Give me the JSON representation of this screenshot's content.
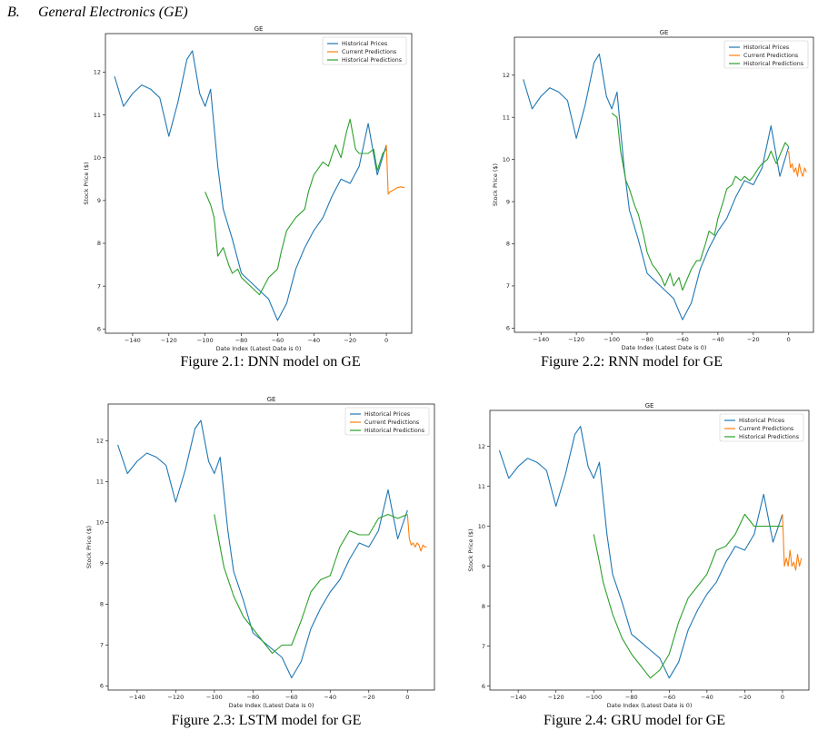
{
  "section": {
    "number": "B.",
    "title": "General Electronics (GE)"
  },
  "colors": {
    "historical_prices": "#1f77b4",
    "current_predictions": "#ff7f0e",
    "historical_predictions": "#2ca02c"
  },
  "captions": [
    "Figure 2.1: DNN model on GE",
    "Figure 2.2: RNN model for GE",
    "Figure 2.3: LSTM model for GE",
    "Figure 2.4: GRU model for GE"
  ],
  "chart_data": [
    {
      "type": "line",
      "title": "GE",
      "xlabel": "Date Index (Latest Date is 0)",
      "ylabel": "Stock Price ($)",
      "xlim": [
        -155,
        14
      ],
      "ylim": [
        5.9,
        12.9
      ],
      "xticks": [
        -140,
        -120,
        -100,
        -80,
        -60,
        -40,
        -20,
        0
      ],
      "yticks": [
        6,
        7,
        8,
        9,
        10,
        11,
        12
      ],
      "legend_position": "top-right",
      "series": [
        {
          "name": "Historical Prices",
          "x": [
            -150,
            -145,
            -140,
            -135,
            -130,
            -125,
            -120,
            -115,
            -110,
            -107,
            -103,
            -100,
            -97,
            -93,
            -90,
            -85,
            -80,
            -75,
            -70,
            -65,
            -60,
            -55,
            -50,
            -45,
            -40,
            -35,
            -30,
            -25,
            -20,
            -15,
            -10,
            -5,
            0
          ],
          "y": [
            11.9,
            11.2,
            11.5,
            11.7,
            11.6,
            11.4,
            10.5,
            11.3,
            12.3,
            12.5,
            11.5,
            11.2,
            11.6,
            9.8,
            8.8,
            8.1,
            7.3,
            7.1,
            6.9,
            6.7,
            6.2,
            6.6,
            7.4,
            7.9,
            8.3,
            8.6,
            9.1,
            9.5,
            9.4,
            9.8,
            10.8,
            9.6,
            10.3
          ]
        },
        {
          "name": "Current Predictions",
          "x": [
            0,
            1,
            2,
            4,
            6,
            8,
            10
          ],
          "y": [
            10.3,
            9.15,
            9.2,
            9.25,
            9.3,
            9.32,
            9.3
          ]
        },
        {
          "name": "Historical Predictions",
          "x": [
            -100,
            -97,
            -95,
            -93,
            -90,
            -87,
            -85,
            -82,
            -80,
            -75,
            -70,
            -65,
            -60,
            -58,
            -55,
            -50,
            -45,
            -43,
            -40,
            -35,
            -32,
            -28,
            -25,
            -22,
            -20,
            -17,
            -15,
            -10,
            -7,
            -5,
            -2,
            0
          ],
          "y": [
            9.2,
            8.9,
            8.6,
            7.7,
            7.9,
            7.5,
            7.3,
            7.4,
            7.2,
            7.0,
            6.8,
            7.2,
            7.4,
            7.8,
            8.3,
            8.6,
            8.8,
            9.2,
            9.6,
            9.9,
            9.8,
            10.3,
            10.0,
            10.6,
            10.9,
            10.2,
            10.1,
            10.1,
            10.2,
            9.7,
            10.1,
            10.2
          ]
        }
      ]
    },
    {
      "type": "line",
      "title": "GE",
      "xlabel": "Date Index (Latest Date is 0)",
      "ylabel": "Stock Price ($)",
      "xlim": [
        -155,
        14
      ],
      "ylim": [
        5.9,
        12.9
      ],
      "xticks": [
        -140,
        -120,
        -100,
        -80,
        -60,
        -40,
        -20,
        0
      ],
      "yticks": [
        6,
        7,
        8,
        9,
        10,
        11,
        12
      ],
      "legend_position": "top-right",
      "series": [
        {
          "name": "Historical Prices",
          "x": [
            -150,
            -145,
            -140,
            -135,
            -130,
            -125,
            -120,
            -115,
            -110,
            -107,
            -103,
            -100,
            -97,
            -93,
            -90,
            -85,
            -80,
            -75,
            -70,
            -65,
            -60,
            -55,
            -50,
            -45,
            -40,
            -35,
            -30,
            -25,
            -20,
            -15,
            -10,
            -5,
            0
          ],
          "y": [
            11.9,
            11.2,
            11.5,
            11.7,
            11.6,
            11.4,
            10.5,
            11.3,
            12.3,
            12.5,
            11.5,
            11.2,
            11.6,
            9.8,
            8.8,
            8.1,
            7.3,
            7.1,
            6.9,
            6.7,
            6.2,
            6.6,
            7.4,
            7.9,
            8.3,
            8.6,
            9.1,
            9.5,
            9.4,
            9.8,
            10.8,
            9.6,
            10.3
          ]
        },
        {
          "name": "Current Predictions",
          "x": [
            0,
            1,
            2,
            3,
            4,
            5,
            6,
            7,
            8,
            9,
            10
          ],
          "y": [
            10.2,
            9.8,
            9.9,
            9.7,
            9.8,
            9.6,
            9.9,
            9.7,
            9.6,
            9.8,
            9.7
          ]
        },
        {
          "name": "Historical Predictions",
          "x": [
            -100,
            -97,
            -95,
            -92,
            -90,
            -87,
            -85,
            -82,
            -80,
            -77,
            -75,
            -72,
            -70,
            -67,
            -65,
            -62,
            -60,
            -57,
            -55,
            -52,
            -50,
            -47,
            -45,
            -42,
            -40,
            -37,
            -35,
            -32,
            -30,
            -27,
            -25,
            -22,
            -20,
            -17,
            -15,
            -12,
            -10,
            -7,
            -5,
            -2,
            0
          ],
          "y": [
            11.1,
            11.0,
            10.2,
            9.5,
            9.3,
            8.9,
            8.7,
            8.2,
            7.8,
            7.5,
            7.4,
            7.2,
            7.0,
            7.3,
            7.0,
            7.2,
            6.9,
            7.2,
            7.4,
            7.6,
            7.6,
            8.0,
            8.3,
            8.2,
            8.6,
            9.0,
            9.3,
            9.4,
            9.6,
            9.5,
            9.6,
            9.5,
            9.6,
            9.8,
            9.9,
            10.0,
            10.2,
            9.9,
            10.1,
            10.4,
            10.3
          ]
        }
      ]
    },
    {
      "type": "line",
      "title": "GE",
      "xlabel": "Date Index (Latest Date is 0)",
      "ylabel": "Stock Price ($)",
      "xlim": [
        -155,
        14
      ],
      "ylim": [
        5.9,
        12.9
      ],
      "xticks": [
        -140,
        -120,
        -100,
        -80,
        -60,
        -40,
        -20,
        0
      ],
      "yticks": [
        6,
        7,
        8,
        9,
        10,
        11,
        12
      ],
      "legend_position": "top-right",
      "series": [
        {
          "name": "Historical Prices",
          "x": [
            -150,
            -145,
            -140,
            -135,
            -130,
            -125,
            -120,
            -115,
            -110,
            -107,
            -103,
            -100,
            -97,
            -93,
            -90,
            -85,
            -80,
            -75,
            -70,
            -65,
            -60,
            -55,
            -50,
            -45,
            -40,
            -35,
            -30,
            -25,
            -20,
            -15,
            -10,
            -5,
            0
          ],
          "y": [
            11.9,
            11.2,
            11.5,
            11.7,
            11.6,
            11.4,
            10.5,
            11.3,
            12.3,
            12.5,
            11.5,
            11.2,
            11.6,
            9.8,
            8.8,
            8.1,
            7.3,
            7.1,
            6.9,
            6.7,
            6.2,
            6.6,
            7.4,
            7.9,
            8.3,
            8.6,
            9.1,
            9.5,
            9.4,
            9.8,
            10.8,
            9.6,
            10.3
          ]
        },
        {
          "name": "Current Predictions",
          "x": [
            0,
            1,
            2,
            3,
            4,
            5,
            6,
            7,
            8,
            9,
            10
          ],
          "y": [
            10.2,
            9.6,
            9.45,
            9.5,
            9.4,
            9.5,
            9.45,
            9.3,
            9.45,
            9.4,
            9.4
          ]
        },
        {
          "name": "Historical Predictions",
          "x": [
            -100,
            -97,
            -95,
            -90,
            -85,
            -80,
            -75,
            -70,
            -65,
            -60,
            -55,
            -50,
            -45,
            -40,
            -35,
            -30,
            -25,
            -20,
            -15,
            -10,
            -5,
            0
          ],
          "y": [
            10.2,
            9.4,
            8.9,
            8.2,
            7.7,
            7.4,
            7.1,
            6.8,
            7.0,
            7.0,
            7.6,
            8.3,
            8.6,
            8.7,
            9.4,
            9.8,
            9.7,
            9.7,
            10.1,
            10.2,
            10.1,
            10.2
          ]
        }
      ]
    },
    {
      "type": "line",
      "title": "GE",
      "xlabel": "Date Index (Latest Date is 0)",
      "ylabel": "Stock Price ($)",
      "xlim": [
        -155,
        14
      ],
      "ylim": [
        5.9,
        12.9
      ],
      "xticks": [
        -140,
        -120,
        -100,
        -80,
        -60,
        -40,
        -20,
        0
      ],
      "yticks": [
        6,
        7,
        8,
        9,
        10,
        11,
        12
      ],
      "legend_position": "top-right",
      "series": [
        {
          "name": "Historical Prices",
          "x": [
            -150,
            -145,
            -140,
            -135,
            -130,
            -125,
            -120,
            -115,
            -110,
            -107,
            -103,
            -100,
            -97,
            -93,
            -90,
            -85,
            -80,
            -75,
            -70,
            -65,
            -60,
            -55,
            -50,
            -45,
            -40,
            -35,
            -30,
            -25,
            -20,
            -15,
            -10,
            -5,
            0
          ],
          "y": [
            11.9,
            11.2,
            11.5,
            11.7,
            11.6,
            11.4,
            10.5,
            11.3,
            12.3,
            12.5,
            11.5,
            11.2,
            11.6,
            9.8,
            8.8,
            8.1,
            7.3,
            7.1,
            6.9,
            6.7,
            6.2,
            6.6,
            7.4,
            7.9,
            8.3,
            8.6,
            9.1,
            9.5,
            9.4,
            9.8,
            10.8,
            9.6,
            10.3
          ]
        },
        {
          "name": "Current Predictions",
          "x": [
            0,
            1,
            2,
            3,
            4,
            5,
            6,
            7,
            8,
            9,
            10
          ],
          "y": [
            10.3,
            9.0,
            9.2,
            9.0,
            9.4,
            9.0,
            9.1,
            8.9,
            9.3,
            9.0,
            9.2
          ]
        },
        {
          "name": "Historical Predictions",
          "x": [
            -100,
            -97,
            -95,
            -90,
            -85,
            -80,
            -75,
            -70,
            -65,
            -60,
            -55,
            -50,
            -45,
            -40,
            -35,
            -30,
            -25,
            -20,
            -15,
            -10,
            -5,
            0
          ],
          "y": [
            9.8,
            9.1,
            8.6,
            7.8,
            7.2,
            6.8,
            6.5,
            6.2,
            6.4,
            6.8,
            7.6,
            8.2,
            8.5,
            8.8,
            9.4,
            9.5,
            9.8,
            10.3,
            10.0,
            10.0,
            10.0,
            10.0
          ]
        }
      ]
    }
  ]
}
